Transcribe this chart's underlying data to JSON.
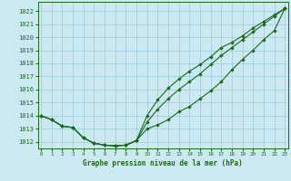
{
  "title": "Graphe pression niveau de la mer (hPa)",
  "background_color": "#cce8f0",
  "grid_color": "#99ccdd",
  "line_color": "#1a6b1a",
  "marker_color": "#1a6b1a",
  "xlim": [
    -0.3,
    23.3
  ],
  "ylim": [
    1011.5,
    1022.7
  ],
  "yticks": [
    1012,
    1013,
    1014,
    1015,
    1016,
    1017,
    1018,
    1019,
    1020,
    1021,
    1022
  ],
  "xticks": [
    0,
    1,
    2,
    3,
    4,
    5,
    6,
    7,
    8,
    9,
    10,
    11,
    12,
    13,
    14,
    15,
    16,
    17,
    18,
    19,
    20,
    21,
    22,
    23
  ],
  "series": [
    {
      "x": [
        0,
        1,
        2,
        3,
        4,
        5,
        6,
        7,
        8,
        9,
        10,
        11,
        12,
        13,
        14,
        15,
        16,
        17,
        18,
        19,
        20,
        21,
        22,
        23
      ],
      "y": [
        1014.0,
        1013.7,
        1013.2,
        1013.1,
        1012.3,
        1011.9,
        1011.75,
        1011.7,
        1011.75,
        1012.1,
        1013.0,
        1013.3,
        1013.7,
        1014.3,
        1014.7,
        1015.3,
        1015.9,
        1016.6,
        1017.5,
        1018.3,
        1019.0,
        1019.8,
        1020.5,
        1022.2
      ]
    },
    {
      "x": [
        0,
        1,
        2,
        3,
        4,
        5,
        6,
        7,
        8,
        9,
        10,
        11,
        12,
        13,
        14,
        15,
        16,
        17,
        18,
        19,
        20,
        21,
        22,
        23
      ],
      "y": [
        1014.0,
        1013.7,
        1013.2,
        1013.1,
        1012.3,
        1011.9,
        1011.75,
        1011.7,
        1011.75,
        1012.1,
        1013.5,
        1014.5,
        1015.3,
        1016.0,
        1016.6,
        1017.2,
        1017.9,
        1018.6,
        1019.2,
        1019.8,
        1020.4,
        1021.0,
        1021.6,
        1022.2
      ]
    },
    {
      "x": [
        0,
        1,
        2,
        3,
        4,
        5,
        6,
        7,
        8,
        9,
        10,
        11,
        12,
        13,
        14,
        15,
        16,
        17,
        18,
        19,
        20,
        21,
        22,
        23
      ],
      "y": [
        1014.0,
        1013.7,
        1013.2,
        1013.1,
        1012.3,
        1011.9,
        1011.75,
        1011.7,
        1011.75,
        1012.1,
        1014.0,
        1015.2,
        1016.1,
        1016.8,
        1017.4,
        1017.9,
        1018.5,
        1019.2,
        1019.6,
        1020.1,
        1020.7,
        1021.2,
        1021.7,
        1022.2
      ]
    }
  ]
}
